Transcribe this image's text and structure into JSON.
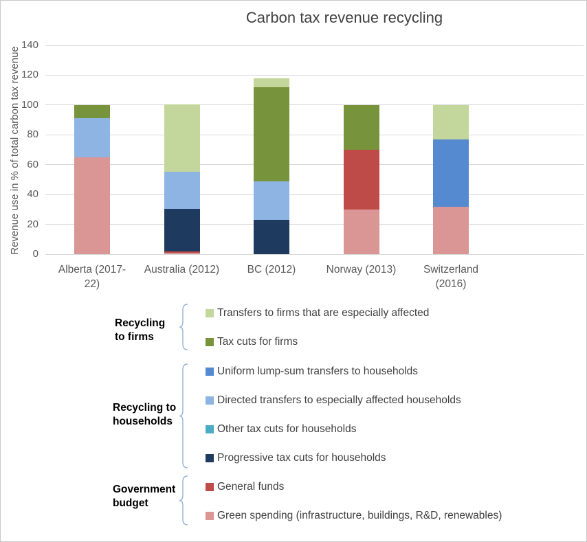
{
  "title": "Carbon tax revenue recycling",
  "y_axis": {
    "label": "Revenue use in % of total carbon tax revenue",
    "ticks": [
      140,
      120,
      100,
      80,
      60,
      40,
      20,
      0
    ],
    "max": 140
  },
  "chart_data": {
    "type": "bar",
    "stacked": true,
    "title": "Carbon tax revenue recycling",
    "xlabel": "",
    "ylabel": "Revenue use in % of total carbon tax revenue",
    "ylim": [
      0,
      140
    ],
    "grid": true,
    "categories": [
      "Alberta (2017-22)",
      "Australia (2012)",
      "BC (2012)",
      "Norway (2013)",
      "Switzerland (2016)"
    ],
    "category_label_lines": [
      [
        "Alberta (2017-",
        "22)"
      ],
      [
        "Australia (2012)"
      ],
      [
        "BC (2012)"
      ],
      [
        "Norway (2013)"
      ],
      [
        "Switzerland",
        "(2016)"
      ]
    ],
    "series": [
      {
        "name": "Green spending (infrastructure, buildings, R&D, renewables)",
        "color": "#D99694",
        "values": [
          65,
          1,
          0,
          30,
          32
        ]
      },
      {
        "name": "General funds",
        "color": "#BE4B48",
        "values": [
          0,
          1,
          0,
          40,
          0
        ]
      },
      {
        "name": "Progressive tax cuts for households",
        "color": "#1E3A5F",
        "values": [
          0,
          28.5,
          23,
          0,
          0
        ]
      },
      {
        "name": "Other tax cuts for households",
        "color": "#4BACC6",
        "values": [
          0,
          0,
          0,
          0,
          0
        ]
      },
      {
        "name": "Directed transfers to especially affected households",
        "color": "#8EB4E3",
        "values": [
          26,
          25,
          26,
          0,
          0
        ]
      },
      {
        "name": "Uniform lump-sum transfers to households",
        "color": "#5589D0",
        "values": [
          0,
          0,
          0,
          0,
          45
        ]
      },
      {
        "name": "Tax cuts for firms",
        "color": "#77933C",
        "values": [
          9,
          0,
          63,
          30,
          0
        ]
      },
      {
        "name": "Transfers to firms that are especially affected",
        "color": "#C3D69B",
        "values": [
          0,
          45,
          6,
          0,
          23
        ]
      }
    ],
    "totals": [
      100,
      100.5,
      118,
      100,
      100
    ]
  },
  "legend": {
    "brace_color": "#95B3D7",
    "groups": [
      {
        "label": "Recycling to firms",
        "items": [
          {
            "label": "Transfers to firms that are especially affected",
            "color": "#C3D69B"
          },
          {
            "label": "Tax cuts for firms",
            "color": "#77933C"
          }
        ]
      },
      {
        "label": "Recycling to households",
        "items": [
          {
            "label": "Uniform lump-sum transfers to households",
            "color": "#5589D0"
          },
          {
            "label": "Directed transfers to especially affected households",
            "color": "#8EB4E3"
          },
          {
            "label": "Other tax cuts for households",
            "color": "#4BACC6"
          },
          {
            "label": "Progressive tax cuts for households",
            "color": "#1E3A5F"
          }
        ]
      },
      {
        "label": "Government budget",
        "items": [
          {
            "label": "General funds",
            "color": "#BE4B48"
          },
          {
            "label": "Green spending (infrastructure, buildings, R&D, renewables)",
            "color": "#D99694"
          }
        ]
      }
    ]
  },
  "colors": {
    "title_text": "#404040",
    "axis_text": "#595959",
    "gridline": "#D9D9D9",
    "border": "#C9C9C9"
  }
}
